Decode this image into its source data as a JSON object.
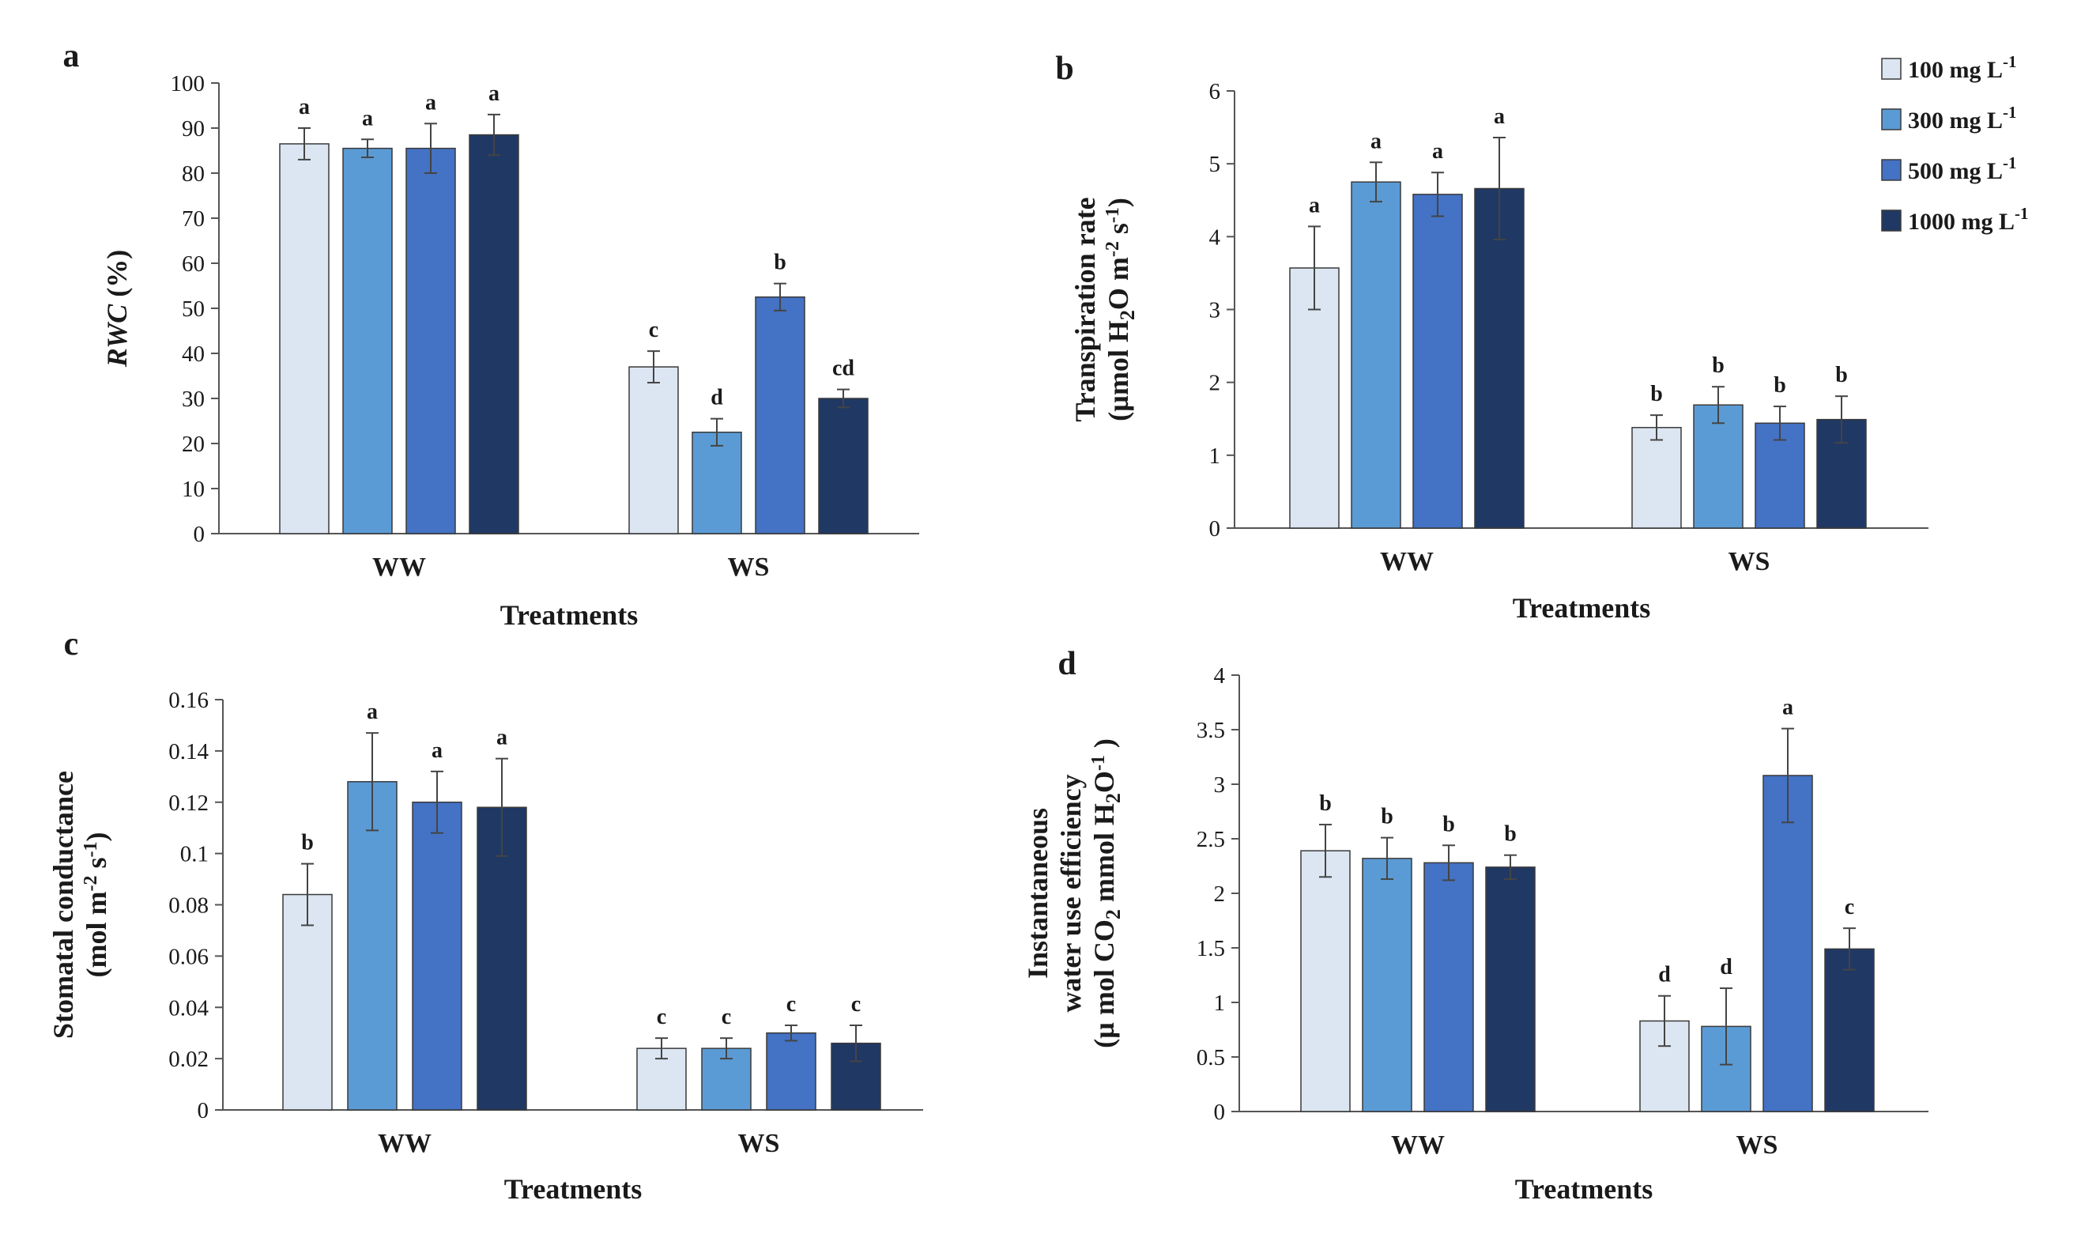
{
  "legend": {
    "entries": [
      {
        "label": "100 mg L",
        "sup": "-1",
        "color": "#dce6f2"
      },
      {
        "label": "300 mg L",
        "sup": "-1",
        "color": "#5b9bd5"
      },
      {
        "label": "500 mg L",
        "sup": "-1",
        "color": "#4472c4"
      },
      {
        "label": "1000 mg L",
        "sup": "-1",
        "color": "#203864"
      }
    ]
  },
  "chart_data": [
    {
      "panel": "a",
      "type": "bar",
      "title": "",
      "xlabel": "Treatments",
      "ylabel": "RWC (%)",
      "ylabel_parts": [
        {
          "t": "RWC",
          "italic": true
        },
        {
          "t": " (%)"
        }
      ],
      "ylim": [
        0,
        100
      ],
      "yticks": [
        0,
        10,
        20,
        30,
        40,
        50,
        60,
        70,
        80,
        90,
        100
      ],
      "ytick_labels": [
        "0",
        "10",
        "20",
        "30",
        "40",
        "50",
        "60",
        "70",
        "80",
        "90",
        "100"
      ],
      "categories": [
        "WW",
        "WS"
      ],
      "series": [
        {
          "name": "100 mg L-1",
          "values": [
            86.5,
            37.0
          ],
          "errors": [
            3.5,
            3.5
          ],
          "letters": [
            "a",
            "c"
          ]
        },
        {
          "name": "300 mg L-1",
          "values": [
            85.5,
            22.5
          ],
          "errors": [
            2.0,
            3.0
          ],
          "letters": [
            "a",
            "d"
          ]
        },
        {
          "name": "500 mg L-1",
          "values": [
            85.5,
            52.5
          ],
          "errors": [
            5.5,
            3.0
          ],
          "letters": [
            "a",
            "b"
          ]
        },
        {
          "name": "1000 mg L-1",
          "values": [
            88.5,
            30.0
          ],
          "errors": [
            4.5,
            2.0
          ],
          "letters": [
            "a",
            "cd"
          ]
        }
      ]
    },
    {
      "panel": "b",
      "type": "bar",
      "title": "",
      "xlabel": "Treatments",
      "ylabel": "Transpiration rate (µmol H2O m-2 s-1)",
      "ylabel_lines": [
        [
          {
            "t": "Transpiration rate"
          }
        ],
        [
          {
            "t": "(µmol H"
          },
          {
            "t": "2",
            "sub": true
          },
          {
            "t": "O  m"
          },
          {
            "t": "-2",
            "sup": true
          },
          {
            "t": " s"
          },
          {
            "t": "-1",
            "sup": true
          },
          {
            "t": ")"
          }
        ]
      ],
      "ylim": [
        0,
        6
      ],
      "yticks": [
        0,
        1,
        2,
        3,
        4,
        5,
        6
      ],
      "ytick_labels": [
        "0",
        "1",
        "2",
        "3",
        "4",
        "5",
        "6"
      ],
      "categories": [
        "WW",
        "WS"
      ],
      "series": [
        {
          "name": "100 mg L-1",
          "values": [
            3.57,
            1.38
          ],
          "errors": [
            0.57,
            0.17
          ],
          "letters": [
            "a",
            "b"
          ]
        },
        {
          "name": "300 mg L-1",
          "values": [
            4.75,
            1.69
          ],
          "errors": [
            0.27,
            0.25
          ],
          "letters": [
            "a",
            "b"
          ]
        },
        {
          "name": "500 mg L-1",
          "values": [
            4.58,
            1.44
          ],
          "errors": [
            0.3,
            0.23
          ],
          "letters": [
            "a",
            "b"
          ]
        },
        {
          "name": "1000 mg L-1",
          "values": [
            4.66,
            1.49
          ],
          "errors": [
            0.7,
            0.32
          ],
          "letters": [
            "a",
            "b"
          ]
        }
      ]
    },
    {
      "panel": "c",
      "type": "bar",
      "title": "",
      "xlabel": "Treatments",
      "ylabel": "Stomatal conductance (mol m-2 s-1)",
      "ylabel_lines": [
        [
          {
            "t": "Stomatal conductance"
          }
        ],
        [
          {
            "t": "(mol  m"
          },
          {
            "t": "-2",
            "sup": true
          },
          {
            "t": " s"
          },
          {
            "t": "-1",
            "sup": true
          },
          {
            "t": ")"
          }
        ]
      ],
      "ylim": [
        0,
        0.16
      ],
      "yticks": [
        0,
        0.02,
        0.04,
        0.06,
        0.08,
        0.1,
        0.12,
        0.14,
        0.16
      ],
      "ytick_labels": [
        "0",
        "0.02",
        "0.04",
        "0.06",
        "0.08",
        "0.1",
        "0.12",
        "0.14",
        "0.16"
      ],
      "categories": [
        "WW",
        "WS"
      ],
      "series": [
        {
          "name": "100 mg L-1",
          "values": [
            0.084,
            0.024
          ],
          "errors": [
            0.012,
            0.004
          ],
          "letters": [
            "b",
            "c"
          ]
        },
        {
          "name": "300 mg L-1",
          "values": [
            0.128,
            0.024
          ],
          "errors": [
            0.019,
            0.004
          ],
          "letters": [
            "a",
            "c"
          ]
        },
        {
          "name": "500 mg L-1",
          "values": [
            0.12,
            0.03
          ],
          "errors": [
            0.012,
            0.003
          ],
          "letters": [
            "a",
            "c"
          ]
        },
        {
          "name": "1000 mg L-1",
          "values": [
            0.118,
            0.026
          ],
          "errors": [
            0.019,
            0.007
          ],
          "letters": [
            "a",
            "c"
          ]
        }
      ]
    },
    {
      "panel": "d",
      "type": "bar",
      "title": "",
      "xlabel": "Treatments",
      "ylabel": "Instantaneous water use efficiency (µmol CO2 mmol H2O-1)",
      "ylabel_lines": [
        [
          {
            "t": "Instantaneous"
          }
        ],
        [
          {
            "t": "water use efficiency"
          }
        ],
        [
          {
            "t": "(µ mol CO"
          },
          {
            "t": "2",
            "sub": true
          },
          {
            "t": " mmol H"
          },
          {
            "t": "2",
            "sub": true
          },
          {
            "t": "O"
          },
          {
            "t": "-1",
            "sup": true
          },
          {
            "t": " )"
          }
        ]
      ],
      "ylim": [
        0,
        4
      ],
      "yticks": [
        0,
        0.5,
        1,
        1.5,
        2,
        2.5,
        3,
        3.5,
        4
      ],
      "ytick_labels": [
        "0",
        "0.5",
        "1",
        "1.5",
        "2",
        "2.5",
        "3",
        "3.5",
        "4"
      ],
      "categories": [
        "WW",
        "WS"
      ],
      "series": [
        {
          "name": "100 mg L-1",
          "values": [
            2.39,
            0.83
          ],
          "errors": [
            0.24,
            0.23
          ],
          "letters": [
            "b",
            "d"
          ]
        },
        {
          "name": "300 mg L-1",
          "values": [
            2.32,
            0.78
          ],
          "errors": [
            0.19,
            0.35
          ],
          "letters": [
            "b",
            "d"
          ]
        },
        {
          "name": "500 mg L-1",
          "values": [
            2.28,
            3.08
          ],
          "errors": [
            0.16,
            0.43
          ],
          "letters": [
            "b",
            "a"
          ]
        },
        {
          "name": "1000 mg L-1",
          "values": [
            2.24,
            1.49
          ],
          "errors": [
            0.11,
            0.19
          ],
          "letters": [
            "b",
            "c"
          ]
        }
      ]
    }
  ]
}
